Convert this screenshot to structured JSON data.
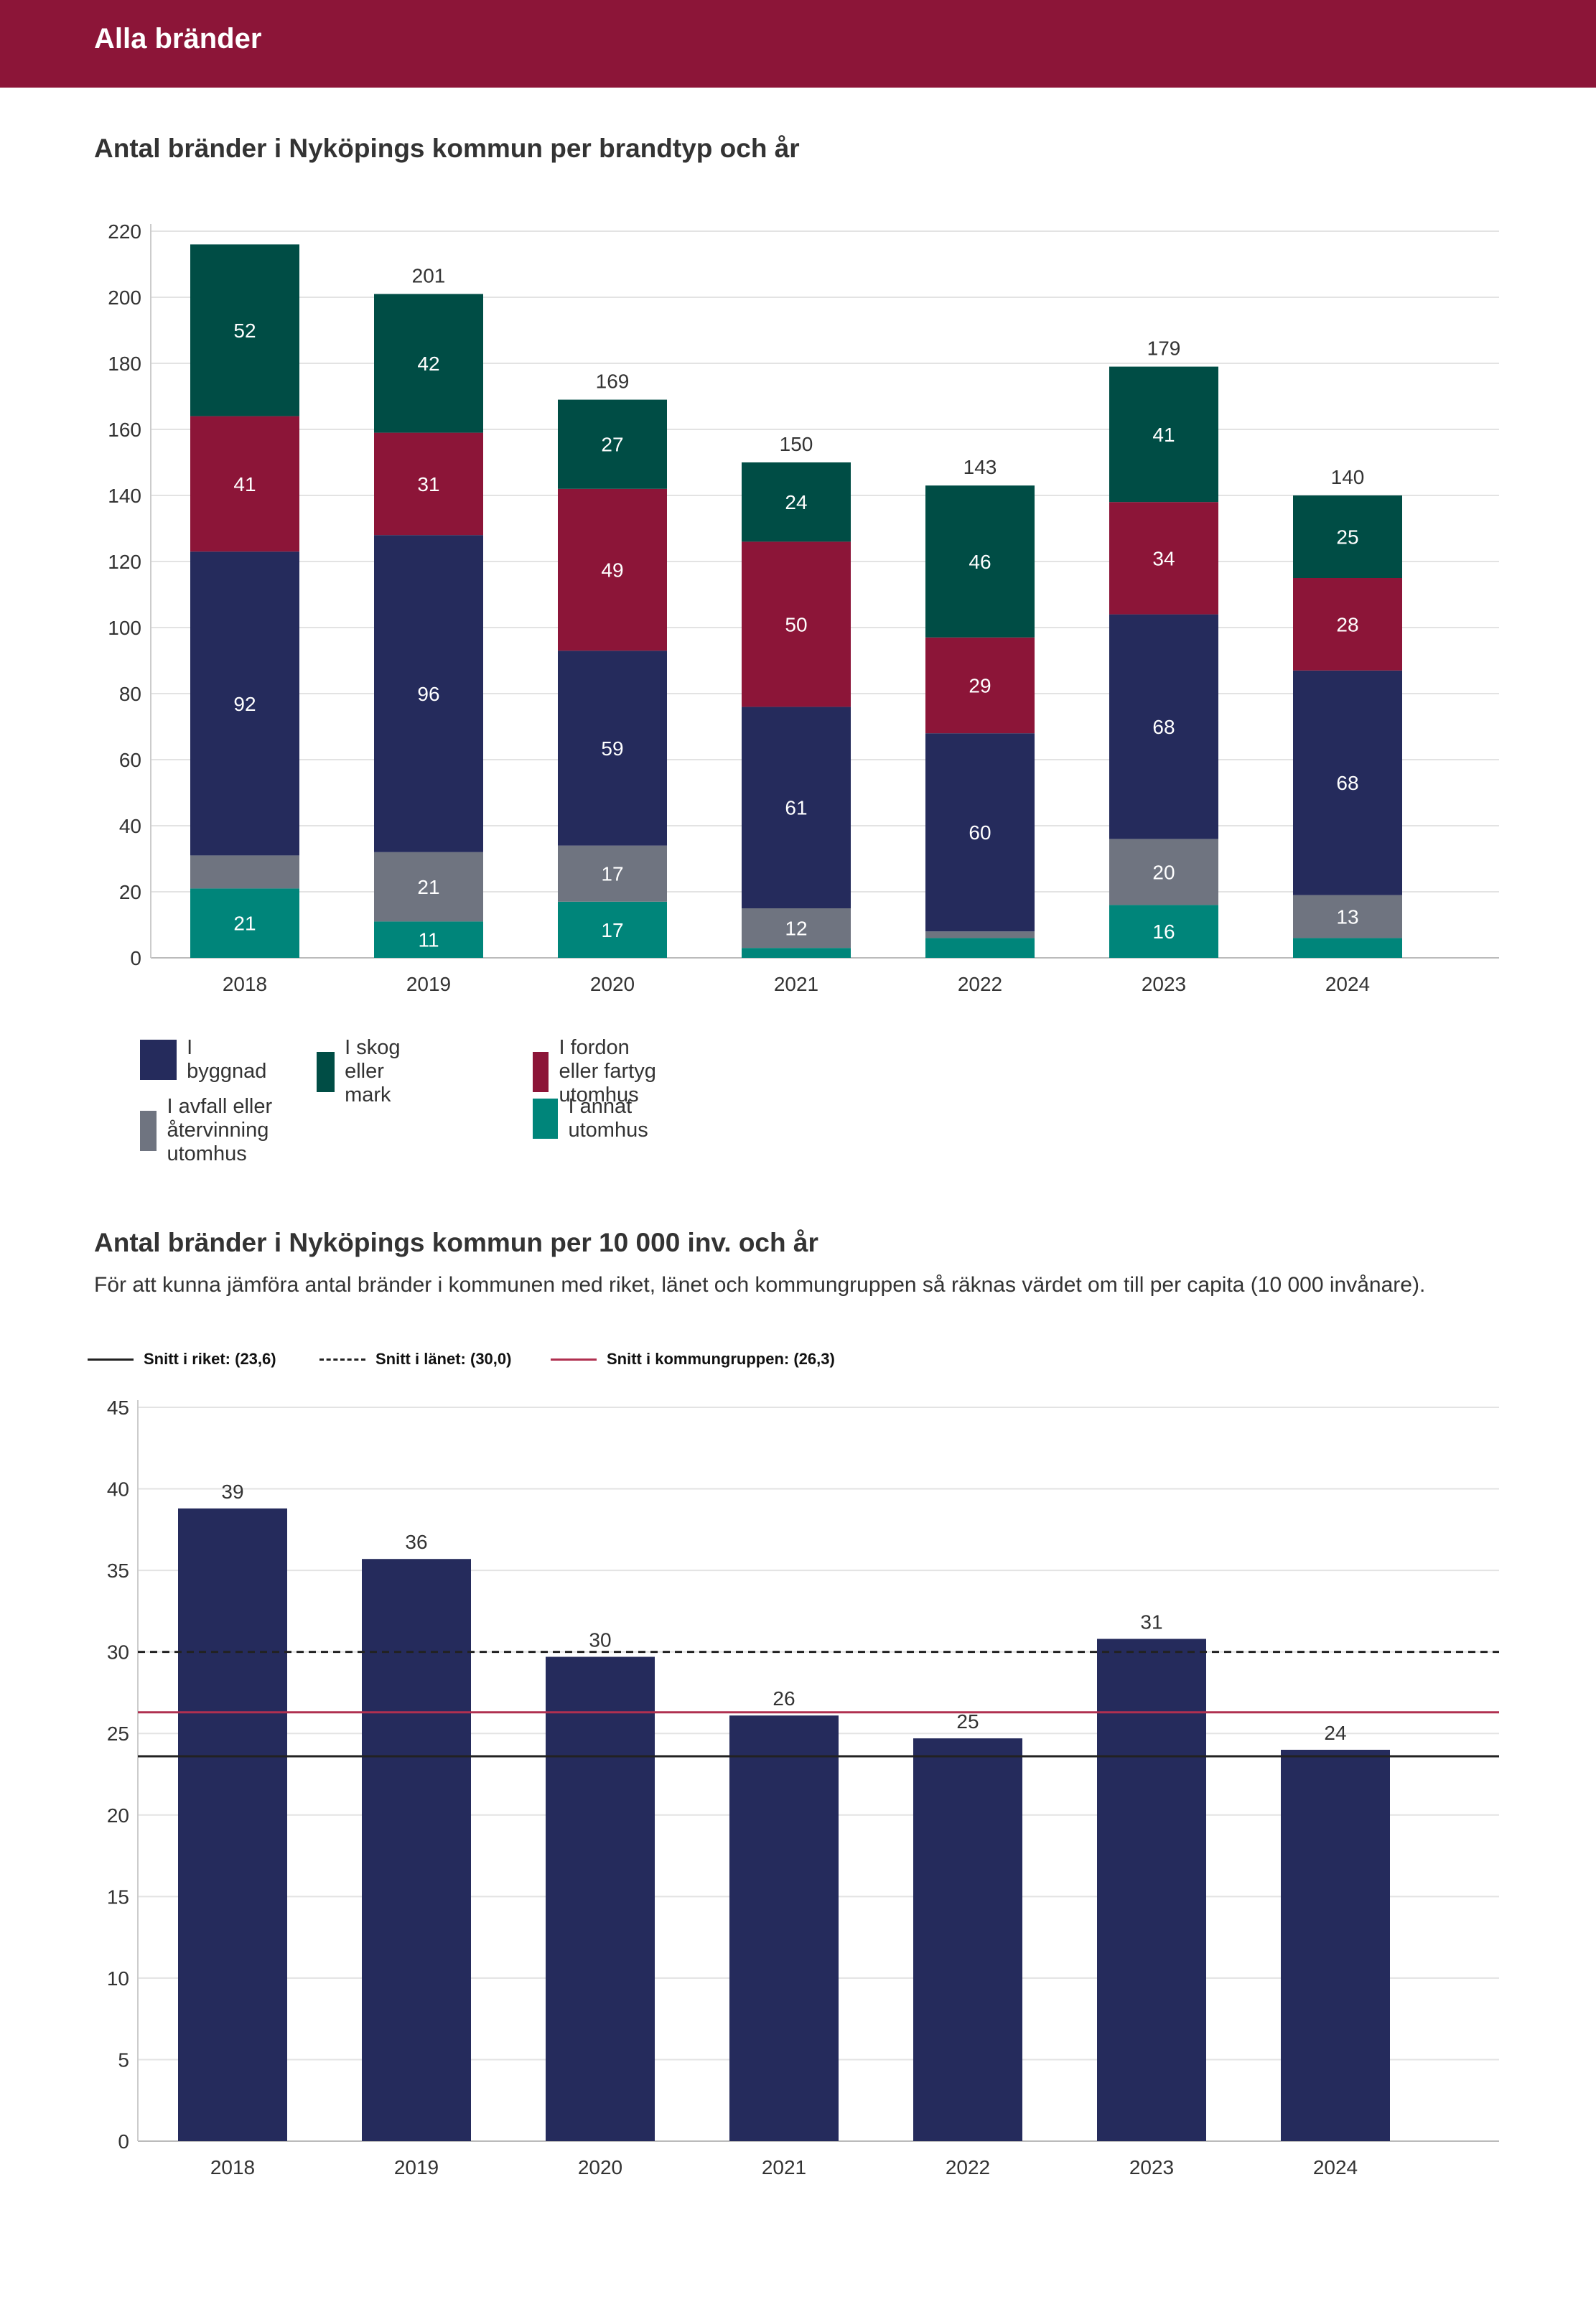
{
  "header": {
    "title": "Alla bränder"
  },
  "chart1": {
    "title": "Antal bränder i Nyköpings kommun per brandtyp och år"
  },
  "chart2": {
    "title": "Antal bränder i Nyköpings kommun per 10 000 inv. och år",
    "subtitle": "För att kunna jämföra antal bränder i kommunen med riket, länet och kommungruppen så räknas värdet om till per capita (10 000 invånare).",
    "reference_legend": [
      {
        "label": "Snitt i riket: (23,6)",
        "style": "solid",
        "color": "#222222"
      },
      {
        "label": "Snitt i länet: (30,0)",
        "style": "dashed",
        "color": "#222222"
      },
      {
        "label": "Snitt i kommungruppen: (26,3)",
        "style": "solid",
        "color": "#b03050"
      }
    ]
  },
  "chart_data": [
    {
      "type": "bar",
      "stacked": true,
      "title": "Antal bränder i Nyköpings kommun per brandtyp och år",
      "categories": [
        "2018",
        "2019",
        "2020",
        "2021",
        "2022",
        "2023",
        "2024"
      ],
      "ylim": [
        0,
        220
      ],
      "yticks": [
        0,
        20,
        40,
        60,
        80,
        100,
        120,
        140,
        160,
        180,
        200,
        220
      ],
      "grid": true,
      "legend_position": "bottom",
      "series": [
        {
          "name": "I annat utomhus",
          "color": "#00857a",
          "values": [
            21,
            11,
            17,
            3,
            6,
            16,
            6
          ],
          "labels": [
            "21",
            "11",
            "17",
            "",
            "",
            "16",
            ""
          ]
        },
        {
          "name": "I avfall eller återvinning utomhus",
          "color": "#6f7480",
          "values": [
            10,
            21,
            17,
            12,
            2,
            20,
            13
          ],
          "labels": [
            "",
            "21",
            "17",
            "12",
            "",
            "20",
            "13"
          ]
        },
        {
          "name": "I byggnad",
          "color": "#252b5c",
          "values": [
            92,
            96,
            59,
            61,
            60,
            68,
            68
          ],
          "labels": [
            "92",
            "96",
            "59",
            "61",
            "60",
            "68",
            "68"
          ]
        },
        {
          "name": "I fordon eller fartyg utomhus",
          "color": "#8c1538",
          "values": [
            41,
            31,
            49,
            50,
            29,
            34,
            28
          ],
          "labels": [
            "41",
            "31",
            "49",
            "50",
            "29",
            "34",
            "28"
          ]
        },
        {
          "name": "I skog eller mark",
          "color": "#004d45",
          "values": [
            52,
            42,
            27,
            24,
            46,
            41,
            25
          ],
          "labels": [
            "52",
            "42",
            "27",
            "24",
            "46",
            "41",
            "25"
          ]
        }
      ],
      "totals": [
        "",
        "201",
        "169",
        "150",
        "143",
        "179",
        "140"
      ],
      "legend_order": [
        "I byggnad",
        "I skog eller mark",
        "I fordon eller fartyg utomhus",
        "I avfall eller återvinning utomhus",
        "I annat utomhus"
      ]
    },
    {
      "type": "bar",
      "title": "Antal bränder i Nyköpings kommun per 10 000 inv. och år",
      "categories": [
        "2018",
        "2019",
        "2020",
        "2021",
        "2022",
        "2023",
        "2024"
      ],
      "values": [
        38.8,
        35.7,
        29.7,
        26.1,
        24.7,
        30.8,
        24.0
      ],
      "value_labels": [
        "39",
        "36",
        "30",
        "26",
        "25",
        "31",
        "24"
      ],
      "bar_color": "#252b5c",
      "ylim": [
        0,
        45
      ],
      "yticks": [
        0,
        5,
        10,
        15,
        20,
        25,
        30,
        35,
        40,
        45
      ],
      "grid": true,
      "reference_lines": [
        {
          "name": "Snitt i riket",
          "value": 23.6,
          "style": "solid",
          "color": "#222222"
        },
        {
          "name": "Snitt i länet",
          "value": 30.0,
          "style": "dashed",
          "color": "#222222"
        },
        {
          "name": "Snitt i kommungruppen",
          "value": 26.3,
          "style": "solid",
          "color": "#b03050"
        }
      ]
    }
  ]
}
